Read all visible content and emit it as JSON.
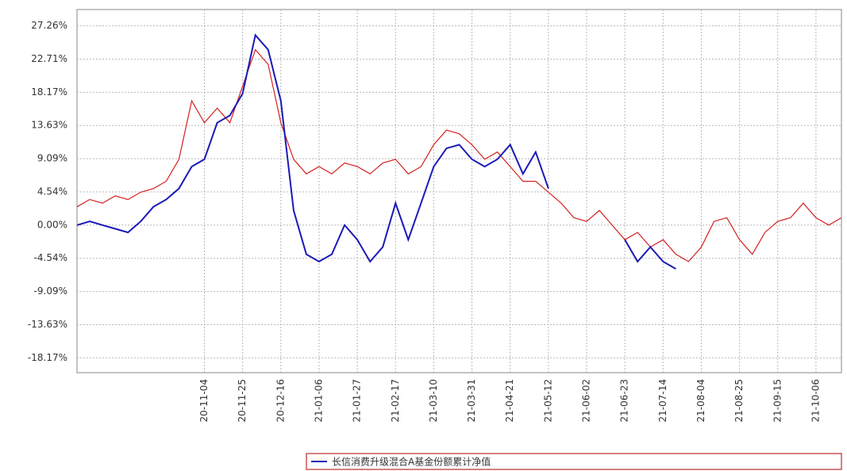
{
  "chart_data": {
    "type": "line",
    "categories": [
      null,
      null,
      null,
      null,
      null,
      null,
      null,
      null,
      null,
      null,
      "20-11-04",
      null,
      null,
      "20-11-25",
      null,
      null,
      "20-12-16",
      null,
      null,
      "21-01-06",
      null,
      null,
      "21-01-27",
      null,
      null,
      "21-02-17",
      null,
      null,
      "21-03-10",
      null,
      null,
      "21-03-31",
      null,
      null,
      "21-04-21",
      null,
      null,
      "21-05-12",
      null,
      null,
      "21-06-02",
      null,
      null,
      "21-06-23",
      null,
      null,
      "21-07-14",
      null,
      null,
      "21-08-04",
      null,
      null,
      "21-08-25",
      null,
      null,
      "21-09-15",
      null,
      null,
      "21-10-06",
      null,
      null
    ],
    "series": [
      {
        "name": "长信消费升级混合A基金份额累计净值",
        "color": "#1a1ab8",
        "values": [
          0,
          0.5,
          0,
          -0.5,
          -1,
          0.5,
          2.5,
          3.5,
          5,
          8,
          9,
          14,
          15,
          18,
          26,
          24,
          17,
          2,
          -4,
          -5,
          -4,
          0,
          -2,
          -5,
          -3,
          3,
          -2,
          3,
          8,
          10.5,
          11,
          9,
          8,
          9,
          11,
          7,
          10,
          5,
          null,
          null,
          null,
          null,
          null,
          -2,
          -5,
          -3,
          -5,
          -6,
          null,
          null,
          null,
          null,
          null,
          null,
          null,
          null,
          null,
          null,
          null,
          null,
          null
        ]
      },
      {
        "color": "#d42020",
        "values": [
          2.5,
          3.5,
          3,
          4,
          3.5,
          4.5,
          5,
          6,
          9,
          17,
          14,
          16,
          14,
          19,
          24,
          22,
          14,
          9,
          7,
          8,
          7,
          8.5,
          8,
          7,
          8.5,
          9,
          7,
          8,
          11,
          13,
          12.5,
          11,
          9,
          10,
          8,
          6,
          6,
          4.5,
          3,
          1,
          0.5,
          2,
          0,
          -2,
          -1,
          -3,
          -2,
          -4,
          -5,
          -3,
          0.5,
          1,
          -2,
          -4,
          -1,
          0.5,
          1,
          3,
          1,
          0,
          1
        ]
      }
    ],
    "ylim": [
      -20.2,
      29.5
    ],
    "yticks": [
      {
        "value": 27.26,
        "label": "27.26%"
      },
      {
        "value": 22.71,
        "label": "22.71%"
      },
      {
        "value": 18.17,
        "label": "18.17%"
      },
      {
        "value": 13.63,
        "label": "13.63%"
      },
      {
        "value": 9.09,
        "label": "9.09%"
      },
      {
        "value": 4.54,
        "label": "4.54%"
      },
      {
        "value": 0,
        "label": "0.00%"
      },
      {
        "value": -4.54,
        "label": "-4.54%"
      },
      {
        "value": -9.09,
        "label": "-9.09%"
      },
      {
        "value": -13.63,
        "label": "-13.63%"
      },
      {
        "value": -18.17,
        "label": "-18.17%"
      }
    ],
    "grid": true
  }
}
